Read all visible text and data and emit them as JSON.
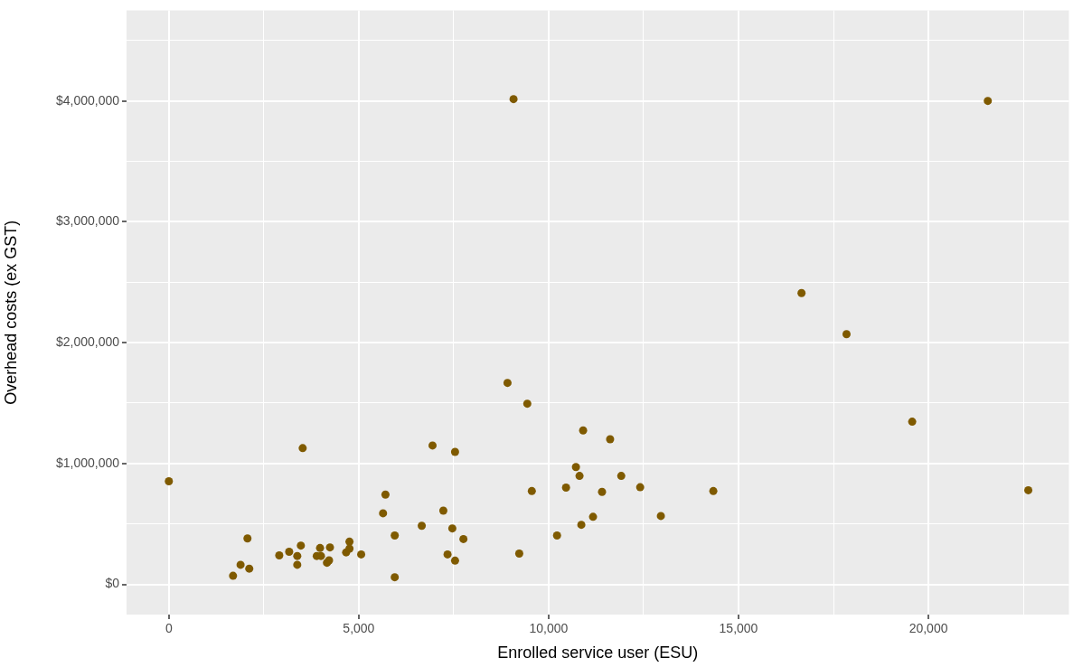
{
  "chart_data": {
    "type": "scatter",
    "xlabel": "Enrolled service user (ESU)",
    "ylabel": "Overhead costs (ex GST)",
    "xlim": [
      -1114,
      23700
    ],
    "ylim": [
      -250000,
      4750000
    ],
    "xticks": [
      0,
      {
        "value": 2500,
        "label": null
      },
      {
        "value": 5000,
        "label": "5,000"
      },
      {
        "value": 7500,
        "label": null
      },
      {
        "value": 10000,
        "label": "10,000"
      },
      {
        "value": 12500,
        "label": null
      },
      {
        "value": 15000,
        "label": "15,000"
      },
      {
        "value": 17500,
        "label": null
      },
      {
        "value": 20000,
        "label": "20,000"
      },
      {
        "value": 22500,
        "label": null
      }
    ],
    "yticks": [
      {
        "value": 0,
        "label": "$0"
      },
      {
        "value": 500000,
        "label": null
      },
      {
        "value": 1000000,
        "label": "$1,000,000"
      },
      {
        "value": 1500000,
        "label": null
      },
      {
        "value": 2000000,
        "label": "$2,000,000"
      },
      {
        "value": 2500000,
        "label": null
      },
      {
        "value": 3000000,
        "label": "$3,000,000"
      },
      {
        "value": 3500000,
        "label": null
      },
      {
        "value": 4000000,
        "label": "$4,000,000"
      },
      {
        "value": 4500000,
        "label": null
      }
    ],
    "grid": true,
    "marker": "circle",
    "series": [
      {
        "color": "#7f5a00",
        "x": [
          0,
          1690,
          1888,
          2070,
          2117,
          2907,
          3168,
          3381,
          3381,
          3476,
          3524,
          3894,
          3981,
          4005,
          4163,
          4218,
          4242,
          4668,
          4756,
          4756,
          5064,
          5640,
          5703,
          5948,
          5948,
          6659,
          6943,
          7227,
          7338,
          7464,
          7536,
          7536,
          7756,
          8917,
          9076,
          9226,
          9438,
          9557,
          10221,
          10458,
          10719,
          10813,
          10861,
          10908,
          11169,
          11406,
          11619,
          11912,
          12410,
          12955,
          14336,
          16659,
          17844,
          19573,
          21564,
          22630
        ],
        "values": [
          853000,
          71000,
          162000,
          380000,
          130000,
          240000,
          270000,
          235000,
          162000,
          321000,
          1127000,
          235000,
          301000,
          235000,
          179000,
          199000,
          306000,
          265000,
          353000,
          296000,
          248000,
          588000,
          743000,
          404000,
          59000,
          485000,
          1149000,
          610000,
          248000,
          463000,
          1096000,
          196000,
          375000,
          1667000,
          4015000,
          255000,
          1495000,
          772000,
          404000,
          801000,
          971000,
          897000,
          493000,
          1274000,
          559000,
          765000,
          1201000,
          897000,
          804000,
          566000,
          772000,
          2410000,
          2070000,
          1346000,
          4000000,
          779000
        ]
      }
    ]
  }
}
